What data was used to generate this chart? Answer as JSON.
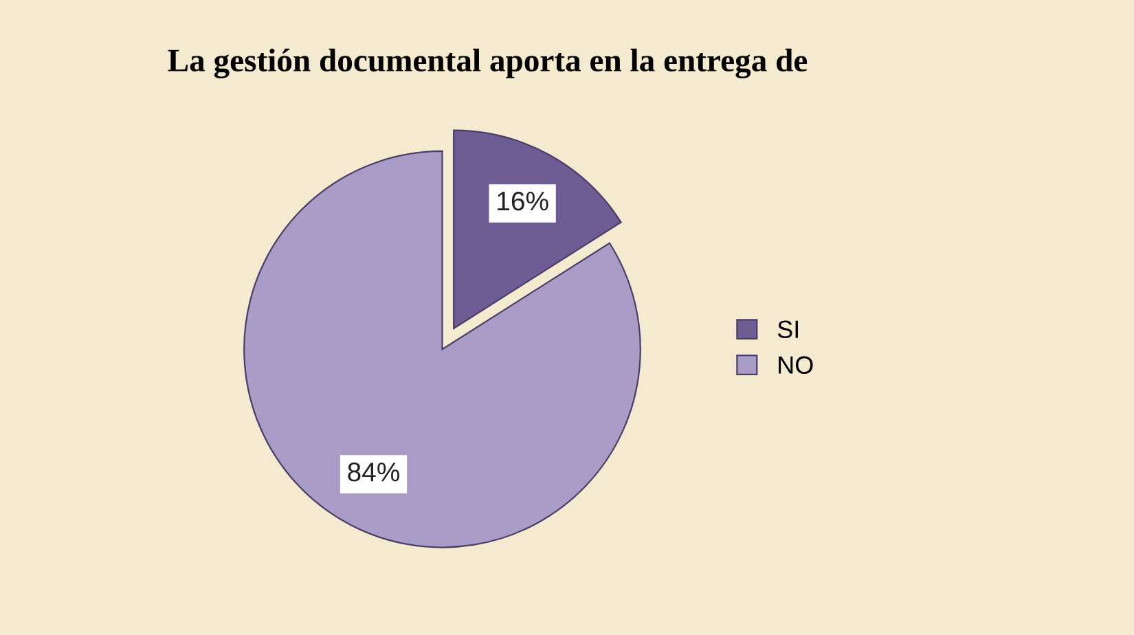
{
  "chart_data": {
    "type": "pie",
    "title": "La gestión documental aporta en la entrega de",
    "categories": [
      "SI",
      "NO"
    ],
    "values": [
      16,
      84
    ],
    "colors": [
      "#6e5c94",
      "#a99cc6"
    ],
    "value_labels": [
      "16%",
      "84%"
    ],
    "legend": "right"
  }
}
